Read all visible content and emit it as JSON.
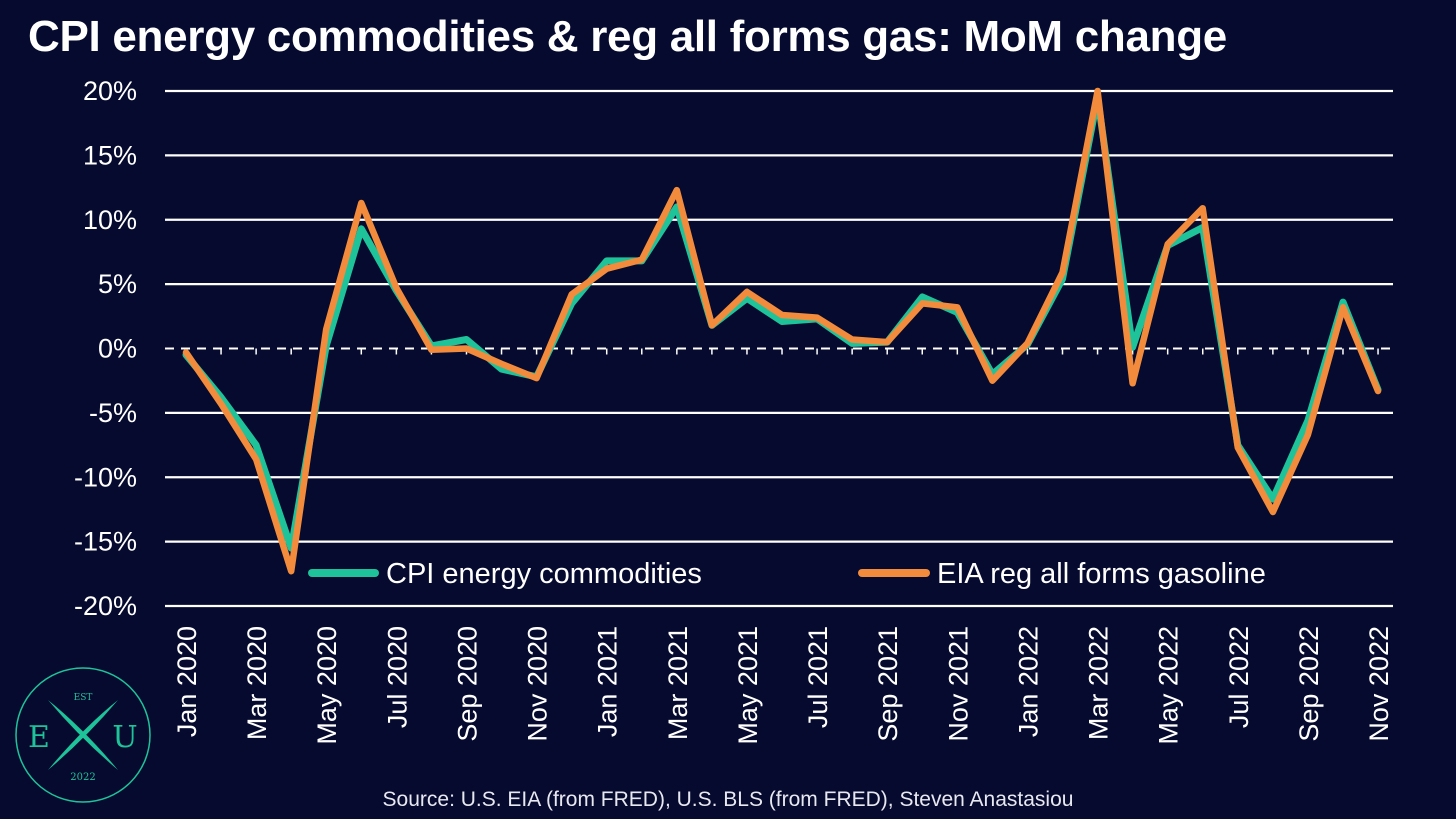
{
  "title": "CPI energy commodities & reg all forms gas: MoM change",
  "source": "Source: U.S. EIA (from FRED), U.S. BLS (from FRED), Steven Anastasiou",
  "logo": {
    "top": "EST",
    "left": "E",
    "right": "U",
    "bottom": "2022"
  },
  "colors": {
    "background": "#050a2e",
    "cpi": "#1fc39a",
    "eia": "#f28b3c",
    "grid": "#ffffff",
    "logo": "#1fc39a"
  },
  "chart_data": {
    "type": "line",
    "title": "CPI energy commodities & reg all forms gas: MoM change",
    "x": [
      "Jan 2020",
      "Feb 2020",
      "Mar 2020",
      "Apr 2020",
      "May 2020",
      "Jun 2020",
      "Jul 2020",
      "Aug 2020",
      "Sep 2020",
      "Oct 2020",
      "Nov 2020",
      "Dec 2020",
      "Jan 2021",
      "Feb 2021",
      "Mar 2021",
      "Apr 2021",
      "May 2021",
      "Jun 2021",
      "Jul 2021",
      "Aug 2021",
      "Sep 2021",
      "Oct 2021",
      "Nov 2021",
      "Dec 2021",
      "Jan 2022",
      "Feb 2022",
      "Mar 2022",
      "Apr 2022",
      "May 2022",
      "Jun 2022",
      "Jul 2022",
      "Aug 2022",
      "Sep 2022",
      "Oct 2022",
      "Nov 2022"
    ],
    "x_tick_labels": [
      "Jan 2020",
      "Mar 2020",
      "May 2020",
      "Jul 2020",
      "Sep 2020",
      "Nov 2020",
      "Jan 2021",
      "Mar 2021",
      "May 2021",
      "Jul 2021",
      "Sep 2021",
      "Nov 2021",
      "Jan 2022",
      "Mar 2022",
      "May 2022",
      "Jul 2022",
      "Sep 2022",
      "Nov 2022"
    ],
    "y_ticks": [
      20,
      15,
      10,
      5,
      0,
      -5,
      -10,
      -15,
      -20
    ],
    "y_tick_labels": [
      "20%",
      "15%",
      "10%",
      "5%",
      "0%",
      "-5%",
      "-10%",
      "-15%",
      "-20%"
    ],
    "ylim": [
      -20,
      20
    ],
    "series": [
      {
        "name": "CPI energy commodities",
        "color": "#1fc39a",
        "values": [
          -0.5,
          -3.8,
          -7.5,
          -15.5,
          0.2,
          9.3,
          4.5,
          0.2,
          0.7,
          -1.6,
          -2.2,
          3.5,
          6.8,
          6.8,
          11.0,
          1.8,
          3.9,
          2.1,
          2.3,
          0.4,
          0.5,
          4.0,
          2.8,
          -2.0,
          0.3,
          5.4,
          19.5,
          0.1,
          8.0,
          9.4,
          -7.5,
          -11.7,
          -5.6,
          3.6,
          -3.2
        ]
      },
      {
        "name": "EIA reg all forms gasoline",
        "color": "#f28b3c",
        "values": [
          -0.3,
          -4.3,
          -8.6,
          -17.3,
          1.5,
          11.3,
          4.7,
          -0.1,
          0.0,
          -1.2,
          -2.3,
          4.2,
          6.2,
          6.9,
          12.3,
          1.8,
          4.4,
          2.6,
          2.4,
          0.7,
          0.5,
          3.5,
          3.2,
          -2.5,
          0.4,
          5.9,
          20.0,
          -2.7,
          8.1,
          10.9,
          -7.7,
          -12.7,
          -6.7,
          3.2,
          -3.3
        ]
      }
    ],
    "grid": true,
    "zero_line": "dashed",
    "legend_position": "bottom"
  }
}
